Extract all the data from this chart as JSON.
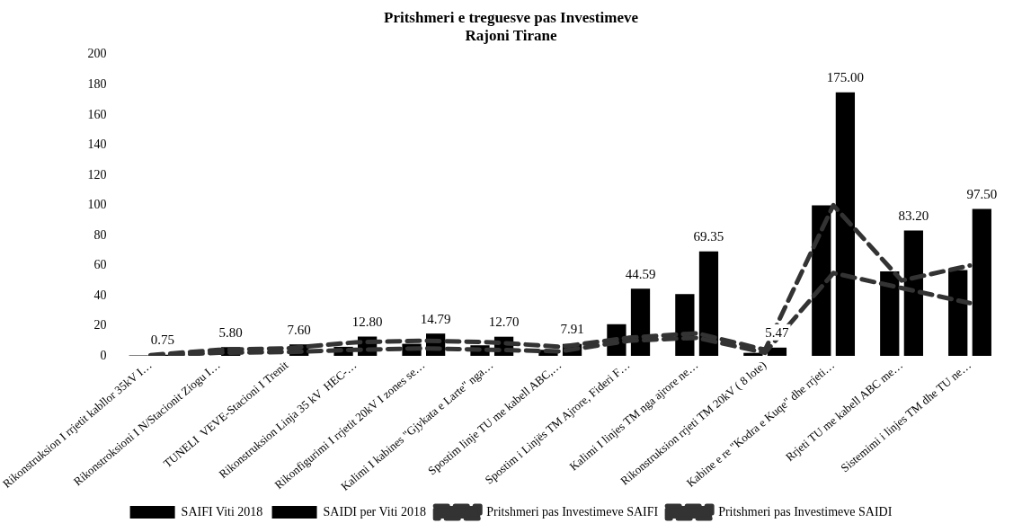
{
  "chart_data": {
    "type": "bar",
    "title": [
      "Pritshmeri e treguesve pas Investimeve",
      "Rajoni Tirane"
    ],
    "categories": [
      "Rikonstruksion I rrjetit kabllor 35kV I…",
      "Rikonstroksioni I N/Stacionit Ziogu I…",
      "TUNELI  VEVE-Stacioni I Trenit",
      "Rikonstruksion Linja 35 kV  HEC-…",
      "Rikonfigurimi I rrjetit 20kV I zones se…",
      "Kalimi I kabines \"Gjykata e Larte\" nga…",
      "Spostim linje TU me kabell ABC,…",
      "Spostim i Linjës TM Ajrore, Fideri F…",
      "Kalimi I linjes TM nga ajrore ne…",
      "Rikonstruksion rrjeti TM 20kV ( 8 lote)",
      "Kabine e re \"Kodra e Kuqe\" dhe rrjeti…",
      "Rrjeti TU me kabell ABC me…",
      "Sistemimi i linjes TM dhe TU ne…"
    ],
    "series": [
      {
        "name": "SAIFI Viti 2018",
        "color": "#000000",
        "values": [
          0.3,
          null,
          null,
          6,
          8,
          7,
          4,
          21,
          41,
          2,
          100,
          56,
          57
        ]
      },
      {
        "name": "SAIDI per Viti 2018",
        "color": "#000000",
        "values": [
          0.75,
          5.8,
          7.6,
          12.8,
          14.79,
          12.7,
          7.91,
          44.59,
          69.35,
          5.47,
          175,
          83.2,
          97.5
        ],
        "value_labels": [
          "0.75",
          "5.80",
          "7.60",
          "12.80",
          "14.79",
          "12.70",
          "7.91",
          "44.59",
          "69.35",
          "5.47",
          "175.00",
          "83.20",
          "97.50"
        ]
      },
      {
        "name": "Pritshmeri pas Investimeve SAIFI",
        "type": "line",
        "line_style": "dashed",
        "color": "#333333",
        "values": [
          0.2,
          2,
          2.5,
          4,
          5,
          4,
          3,
          10,
          12,
          2,
          55,
          45,
          35
        ]
      },
      {
        "name": "Pritshmeri pas Investimeve SAIDI",
        "type": "line",
        "line_style": "dashed",
        "color": "#333333",
        "values": [
          0.5,
          4,
          5,
          9,
          10,
          9,
          6,
          12,
          15,
          4,
          100,
          50,
          60
        ]
      }
    ],
    "ylim": [
      0,
      200
    ],
    "yticks": [
      0,
      20,
      40,
      60,
      80,
      100,
      120,
      140,
      160,
      180,
      200
    ],
    "grid": false,
    "legend": "bottom",
    "marker": "none"
  }
}
